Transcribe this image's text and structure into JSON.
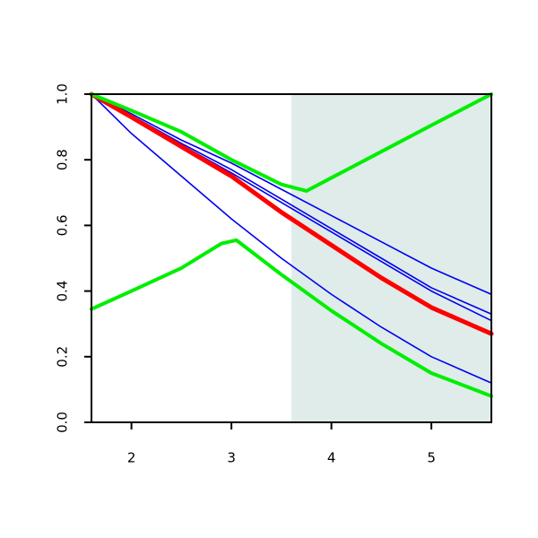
{
  "chart_data": {
    "type": "line",
    "xlim": [
      1.6,
      5.6
    ],
    "ylim": [
      0,
      1
    ],
    "xticks": [
      2,
      3,
      4,
      5
    ],
    "yticks": [
      {
        "value": 0,
        "label": "0.0"
      },
      0.2,
      0.4,
      0.6,
      0.8,
      {
        "value": 1,
        "label": "1.0"
      }
    ],
    "shaded_region": {
      "x": [
        3.6,
        5.6
      ],
      "color": "#dfecea"
    },
    "series": [
      {
        "color": "#0000ee",
        "width": 1.6,
        "x": [
          1.6,
          2,
          2.5,
          3,
          3.5,
          4,
          4.5,
          5,
          5.6
        ],
        "values": [
          1,
          0.94,
          0.86,
          0.79,
          0.71,
          0.63,
          0.55,
          0.47,
          0.39
        ]
      },
      {
        "color": "#0000ee",
        "width": 1.6,
        "x": [
          1.6,
          2,
          2.5,
          3,
          3.5,
          4,
          4.5,
          5,
          5.6
        ],
        "values": [
          1,
          0.935,
          0.85,
          0.77,
          0.68,
          0.59,
          0.5,
          0.41,
          0.33
        ]
      },
      {
        "color": "#0000ee",
        "width": 1.6,
        "x": [
          1.6,
          2,
          2.5,
          3,
          3.5,
          4,
          4.5,
          5,
          5.6
        ],
        "values": [
          1,
          0.93,
          0.845,
          0.76,
          0.67,
          0.58,
          0.49,
          0.4,
          0.31
        ]
      },
      {
        "color": "#0000ee",
        "width": 1.6,
        "x": [
          1.6,
          2,
          2.5,
          3,
          3.5,
          4,
          4.5,
          5,
          5.6
        ],
        "values": [
          1,
          0.88,
          0.75,
          0.62,
          0.5,
          0.39,
          0.29,
          0.2,
          0.12
        ]
      },
      {
        "color": "#ff0000",
        "width": 5,
        "x": [
          1.6,
          2,
          2.5,
          3,
          3.5,
          4,
          4.5,
          5,
          5.6
        ],
        "values": [
          1,
          0.93,
          0.84,
          0.75,
          0.64,
          0.54,
          0.44,
          0.35,
          0.27
        ]
      },
      {
        "color": "#00ee00",
        "width": 4,
        "x": [
          1.6,
          2,
          2.5,
          3,
          3.5,
          3.75,
          4,
          4.5,
          5,
          5.6
        ],
        "values": [
          1,
          0.95,
          0.885,
          0.8,
          0.725,
          0.705,
          0.745,
          0.825,
          0.905,
          1
        ]
      },
      {
        "color": "#00ee00",
        "width": 4,
        "x": [
          1.6,
          2,
          2.5,
          2.9,
          3.05,
          3.5,
          4,
          4.5,
          5,
          5.6
        ],
        "values": [
          0.345,
          0.4,
          0.47,
          0.545,
          0.555,
          0.45,
          0.34,
          0.24,
          0.15,
          0.08
        ]
      }
    ]
  }
}
